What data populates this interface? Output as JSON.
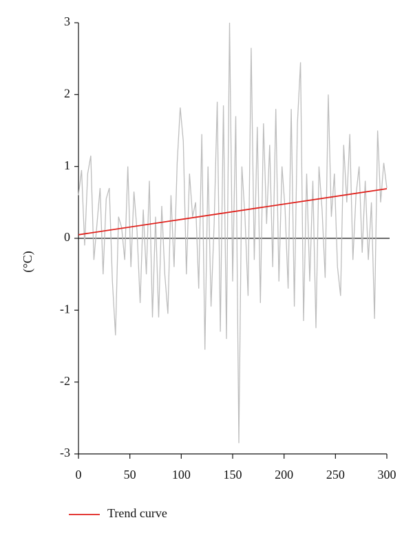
{
  "chart_data": {
    "type": "line",
    "y_label": "(°C)",
    "x": [
      0,
      3,
      6,
      9,
      12,
      15,
      18,
      21,
      24,
      27,
      30,
      33,
      36,
      39,
      42,
      45,
      48,
      51,
      54,
      57,
      60,
      63,
      66,
      69,
      72,
      75,
      78,
      81,
      84,
      87,
      90,
      93,
      96,
      99,
      102,
      105,
      108,
      111,
      114,
      117,
      120,
      123,
      126,
      129,
      132,
      135,
      138,
      141,
      144,
      147,
      150,
      153,
      156,
      159,
      162,
      165,
      168,
      171,
      174,
      177,
      180,
      183,
      186,
      189,
      192,
      195,
      198,
      201,
      204,
      207,
      210,
      213,
      216,
      219,
      222,
      225,
      228,
      231,
      234,
      237,
      240,
      243,
      246,
      249,
      252,
      255,
      258,
      261,
      264,
      267,
      270,
      273,
      276,
      279,
      282,
      285,
      288,
      291,
      294,
      297,
      300
    ],
    "series": [
      {
        "color": "#bdbdbd",
        "values": [
          0.6,
          0.95,
          -0.1,
          0.9,
          1.15,
          -0.3,
          0.2,
          0.7,
          -0.5,
          0.55,
          0.7,
          -0.6,
          -1.35,
          0.3,
          0.15,
          -0.3,
          1.0,
          -0.4,
          0.65,
          0.1,
          -0.9,
          0.4,
          -0.5,
          0.8,
          -1.1,
          0.3,
          -1.1,
          0.45,
          -0.5,
          -1.05,
          0.6,
          -0.4,
          1.05,
          1.82,
          1.35,
          -0.5,
          0.9,
          0.3,
          0.5,
          -0.7,
          1.45,
          -1.55,
          1.0,
          -0.95,
          0.2,
          1.9,
          -1.3,
          1.85,
          -1.4,
          3.0,
          -0.6,
          1.7,
          -2.85,
          1.0,
          0.3,
          -0.8,
          2.65,
          -0.3,
          1.55,
          -0.9,
          1.6,
          0.2,
          1.3,
          -0.4,
          1.8,
          -0.6,
          1.0,
          0.4,
          -0.7,
          1.8,
          -0.95,
          1.6,
          2.45,
          -1.15,
          0.9,
          -0.6,
          0.8,
          -1.25,
          1.0,
          0.4,
          -0.55,
          2.0,
          0.3,
          0.9,
          -0.4,
          -0.8,
          1.3,
          0.5,
          1.45,
          -0.3,
          0.6,
          1.0,
          -0.2,
          0.8,
          -0.3,
          0.5,
          -1.12,
          1.5,
          0.5,
          1.05,
          0.7
        ]
      },
      {
        "name": "Trend curve",
        "color": "#e0201b",
        "x": [
          0,
          300
        ],
        "values": [
          0.05,
          0.69
        ]
      }
    ],
    "xlim": [
      0,
      300
    ],
    "xticks": [
      0,
      50,
      100,
      150,
      200,
      250,
      300
    ],
    "ylim": [
      -3,
      3
    ],
    "yticks": [
      -3,
      -2,
      -1,
      0,
      1,
      2,
      3
    ],
    "zero_line": true
  }
}
